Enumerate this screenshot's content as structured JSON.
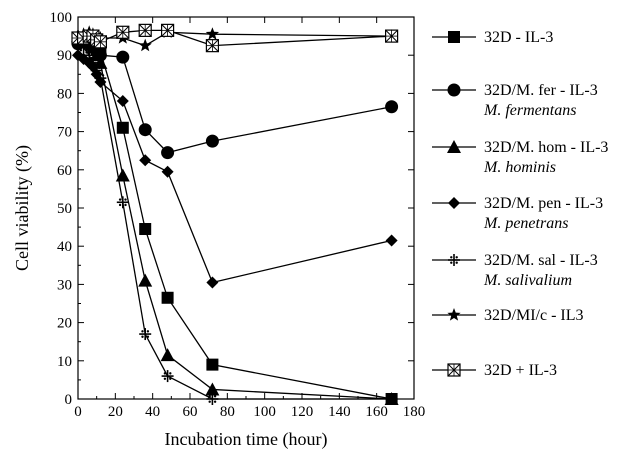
{
  "chart_data": {
    "type": "line",
    "xlabel": "Incubation time (hour)",
    "ylabel": "Cell viability (%)",
    "xlim": [
      0,
      180
    ],
    "ylim": [
      0,
      100
    ],
    "xticks": [
      0,
      20,
      40,
      60,
      80,
      100,
      120,
      140,
      160,
      180
    ],
    "yticks": [
      0,
      10,
      20,
      30,
      40,
      50,
      60,
      70,
      80,
      90,
      100
    ],
    "grid": false,
    "legend_placement": "right",
    "series": [
      {
        "name": "32D - IL-3",
        "subtitle": "",
        "marker": "square-filled",
        "points": [
          [
            0,
            94
          ],
          [
            3,
            94.5
          ],
          [
            6,
            94
          ],
          [
            8,
            93.5
          ],
          [
            10,
            92
          ],
          [
            12,
            91
          ],
          [
            24,
            71
          ],
          [
            36,
            44.5
          ],
          [
            48,
            26.5
          ],
          [
            72,
            9
          ],
          [
            168,
            0
          ]
        ]
      },
      {
        "name": "32D/M. fer - IL-3",
        "subtitle": "M. fermentans",
        "marker": "circle-filled",
        "points": [
          [
            0,
            93
          ],
          [
            3,
            93.5
          ],
          [
            6,
            93
          ],
          [
            8,
            92
          ],
          [
            10,
            91
          ],
          [
            12,
            90
          ],
          [
            24,
            89.5
          ],
          [
            36,
            70.5
          ],
          [
            48,
            64.5
          ],
          [
            72,
            67.5
          ],
          [
            168,
            76.5
          ]
        ]
      },
      {
        "name": "32D/M. hom - IL-3",
        "subtitle": "M. hominis",
        "marker": "triangle-filled",
        "points": [
          [
            0,
            95
          ],
          [
            3,
            95
          ],
          [
            6,
            94
          ],
          [
            8,
            92
          ],
          [
            10,
            90
          ],
          [
            12,
            88
          ],
          [
            24,
            58.5
          ],
          [
            36,
            31
          ],
          [
            48,
            11.5
          ],
          [
            72,
            2.5
          ],
          [
            168,
            0
          ]
        ]
      },
      {
        "name": "32D/M. pen - IL-3",
        "subtitle": "M. penetrans",
        "marker": "diamond-filled",
        "points": [
          [
            0,
            90
          ],
          [
            3,
            89
          ],
          [
            6,
            88
          ],
          [
            8,
            87
          ],
          [
            10,
            85
          ],
          [
            12,
            83
          ],
          [
            24,
            78
          ],
          [
            36,
            62.5
          ],
          [
            48,
            59.5
          ],
          [
            72,
            30.5
          ],
          [
            168,
            41.5
          ]
        ]
      },
      {
        "name": "32D/M. sal - IL-3",
        "subtitle": "M. salivalium",
        "marker": "cross-plus",
        "points": [
          [
            0,
            93
          ],
          [
            3,
            92
          ],
          [
            6,
            90
          ],
          [
            8,
            88
          ],
          [
            10,
            86
          ],
          [
            12,
            84
          ],
          [
            24,
            51.5
          ],
          [
            36,
            17
          ],
          [
            48,
            6
          ],
          [
            72,
            0
          ],
          [
            168,
            0
          ]
        ]
      },
      {
        "name": "32D/MI/c - IL3",
        "subtitle": "",
        "marker": "star-filled",
        "points": [
          [
            0,
            95
          ],
          [
            3,
            95.5
          ],
          [
            6,
            96
          ],
          [
            8,
            95.5
          ],
          [
            10,
            95
          ],
          [
            12,
            94.5
          ],
          [
            24,
            94.5
          ],
          [
            36,
            92.5
          ],
          [
            48,
            96
          ],
          [
            72,
            95.5
          ],
          [
            168,
            95
          ]
        ]
      },
      {
        "name": "32D + IL-3",
        "subtitle": "",
        "marker": "square-cross",
        "points": [
          [
            0,
            94.5
          ],
          [
            3,
            94.5
          ],
          [
            6,
            95
          ],
          [
            8,
            95
          ],
          [
            10,
            94
          ],
          [
            12,
            93.5
          ],
          [
            24,
            96
          ],
          [
            36,
            96.5
          ],
          [
            48,
            96.5
          ],
          [
            72,
            92.5
          ],
          [
            168,
            95
          ]
        ]
      }
    ]
  }
}
